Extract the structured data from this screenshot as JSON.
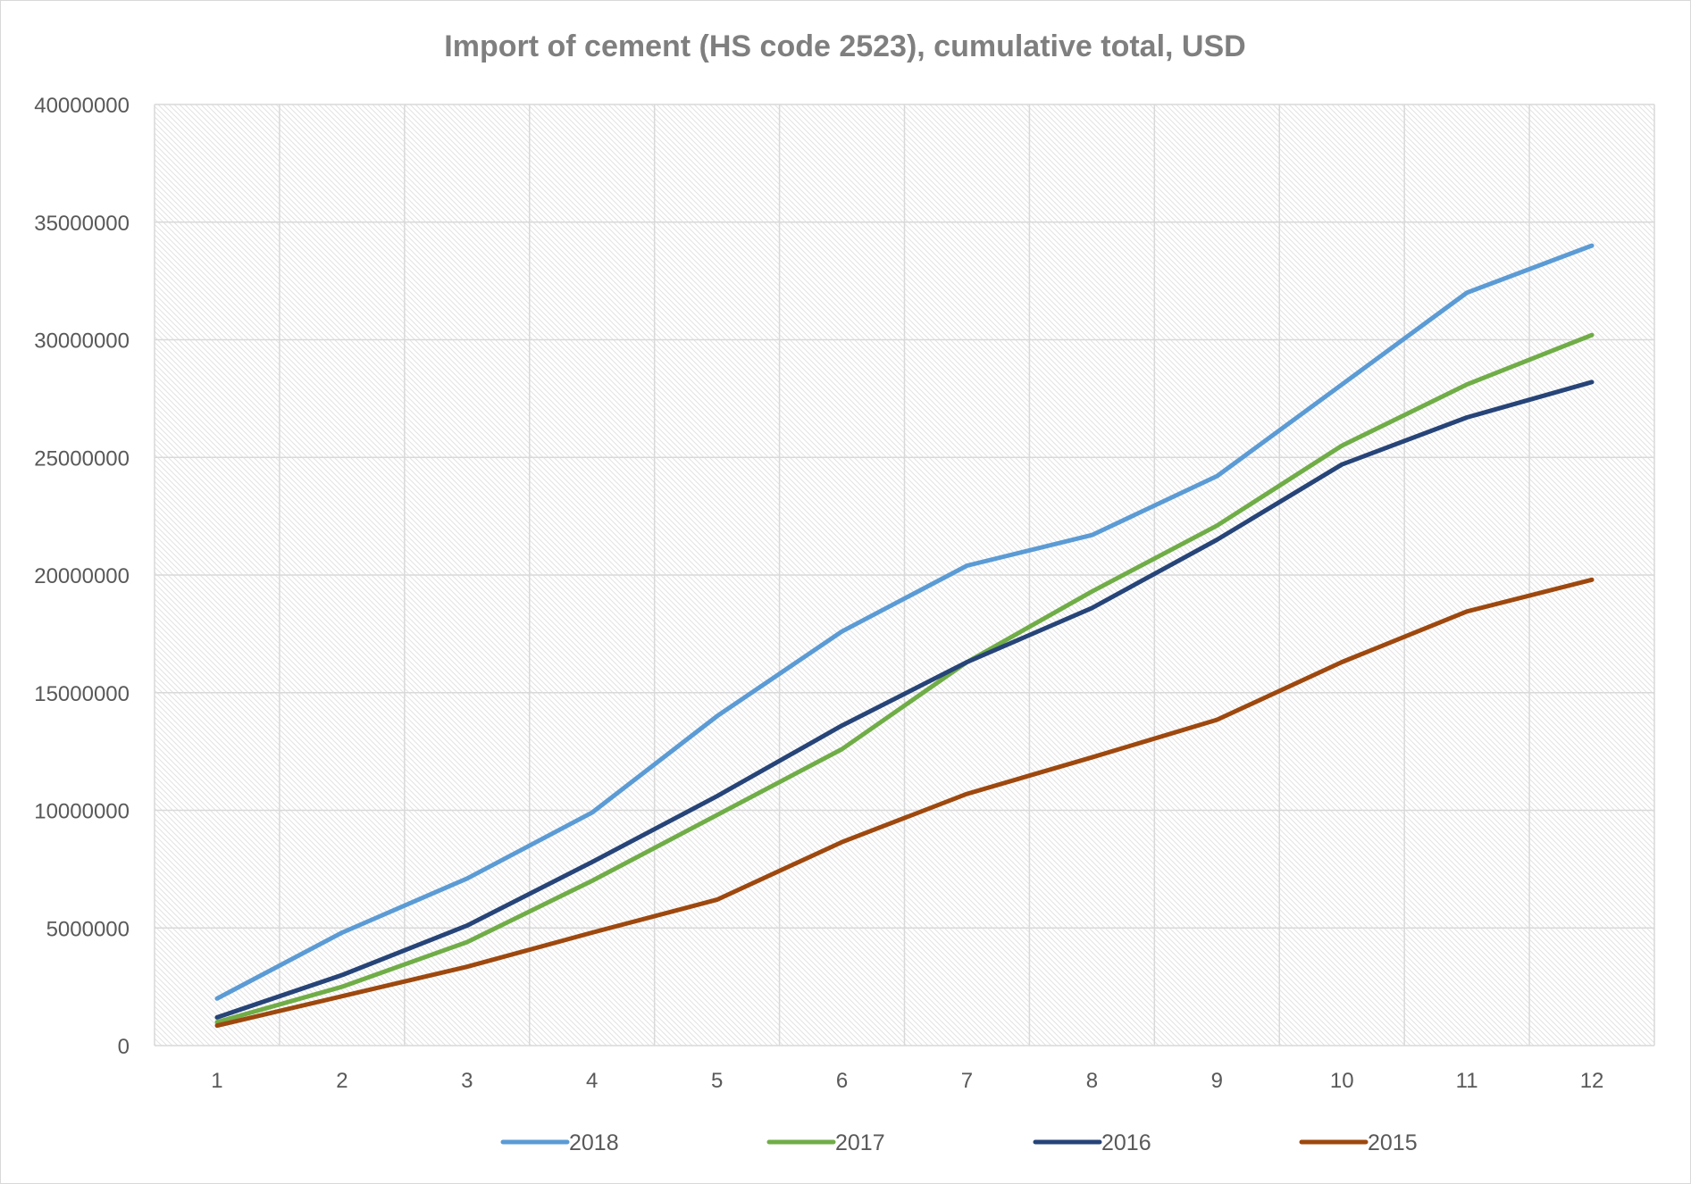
{
  "chart_data": {
    "type": "line",
    "title": "Import of cement (HS code 2523), cumulative total, USD",
    "xlabel": "",
    "ylabel": "",
    "x": [
      "1",
      "2",
      "3",
      "4",
      "5",
      "6",
      "7",
      "8",
      "9",
      "10",
      "11",
      "12"
    ],
    "ylim": [
      0,
      40000000
    ],
    "yticks": [
      "0",
      "5000000",
      "10000000",
      "15000000",
      "20000000",
      "25000000",
      "30000000",
      "35000000",
      "40000000"
    ],
    "grid": true,
    "legend_position": "bottom",
    "series": [
      {
        "name": "2018",
        "color": "#5b9bd5",
        "values": [
          2000000,
          4800000,
          7100000,
          9900000,
          14000000,
          17600000,
          20400000,
          21700000,
          24200000,
          28100000,
          32000000,
          34000000
        ]
      },
      {
        "name": "2017",
        "color": "#70ad47",
        "values": [
          1000000,
          2500000,
          4400000,
          7000000,
          9800000,
          12600000,
          16300000,
          19300000,
          22100000,
          25500000,
          28100000,
          30200000
        ]
      },
      {
        "name": "2016",
        "color": "#264478",
        "values": [
          1200000,
          3000000,
          5100000,
          7800000,
          10600000,
          13600000,
          16300000,
          18600000,
          21500000,
          24700000,
          26700000,
          28200000
        ]
      },
      {
        "name": "2015",
        "color": "#9e480e",
        "values": [
          850000,
          2100000,
          3350000,
          4800000,
          6200000,
          8650000,
          10700000,
          12250000,
          13850000,
          16300000,
          18450000,
          19800000
        ]
      }
    ]
  }
}
